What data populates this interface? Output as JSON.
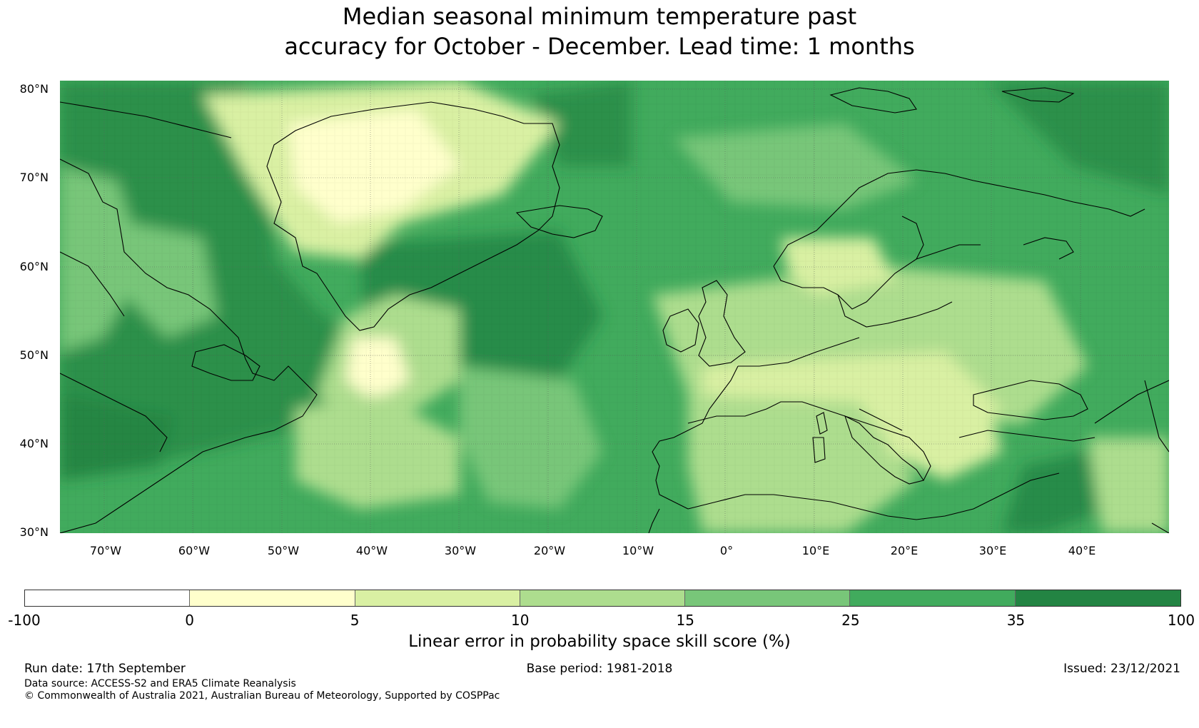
{
  "title_line1": "Median seasonal minimum temperature past",
  "title_line2": "accuracy for October - December. Lead time: 1 months",
  "map": {
    "lon_range": [
      -75,
      50
    ],
    "lat_range": [
      30,
      81
    ],
    "lat_ticks": [
      "80°N",
      "70°N",
      "60°N",
      "50°N",
      "40°N",
      "30°N"
    ],
    "lon_ticks": [
      "70°W",
      "60°W",
      "50°W",
      "40°W",
      "30°W",
      "20°W",
      "10°W",
      "0°",
      "10°E",
      "20°E",
      "30°E",
      "40°E"
    ],
    "grid_lines": "on"
  },
  "colorbar": {
    "ticks": [
      "-100",
      "0",
      "5",
      "10",
      "15",
      "25",
      "35",
      "100"
    ],
    "colors": [
      "#ffffff",
      "#ffffcc",
      "#d9f0a3",
      "#addd8e",
      "#78c679",
      "#41ab5d",
      "#238443"
    ],
    "label": "Linear error in probability space skill score (%)"
  },
  "footer": {
    "run_date": "Run date: 17th September",
    "base_period": "Base period: 1981-2018",
    "issued": "Issued: 23/12/2021",
    "data_source": "Data source: ACCESS-S2 and ERA5 Climate Reanalysis",
    "copyright": "© Commonwealth of Australia 2021, Australian Bureau of Meteorology, Supported by COSPPac"
  }
}
